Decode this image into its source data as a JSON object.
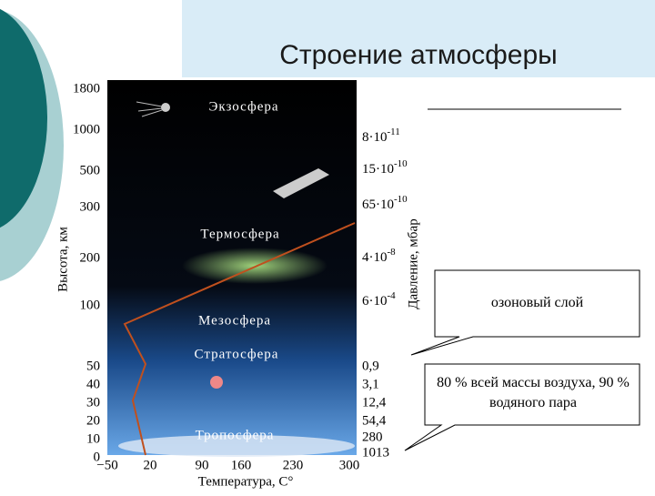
{
  "title": "Строение атмосферы",
  "diagram": {
    "height_axis": {
      "title": "Высота, км",
      "ticks": [
        "1800",
        "1000",
        "500",
        "300",
        "200",
        "100",
        "50",
        "40",
        "30",
        "20",
        "10",
        "0"
      ]
    },
    "pressure_axis": {
      "title": "Давление, мбар",
      "ticks": [
        {
          "base": "8·10",
          "exp": "-11"
        },
        {
          "base": "15·10",
          "exp": "-10"
        },
        {
          "base": "65·10",
          "exp": "-10"
        },
        {
          "base": "4·10",
          "exp": "-8"
        },
        {
          "base": "6·10",
          "exp": "-4"
        },
        "0,9",
        "3,1",
        "12,4",
        "54,4",
        "280",
        "1013"
      ]
    },
    "temperature_axis": {
      "title": "Температура, С°",
      "ticks": [
        "−50",
        "20",
        "90",
        "160",
        "230",
        "300"
      ]
    },
    "layers": [
      "Экзосфера",
      "Термосфера",
      "Мезосфера",
      "Стратосфера",
      "Тропосфера"
    ]
  },
  "callouts": [
    "озоновый слой",
    "80 % всей массы воздуха, 90 % водяного пара"
  ]
}
